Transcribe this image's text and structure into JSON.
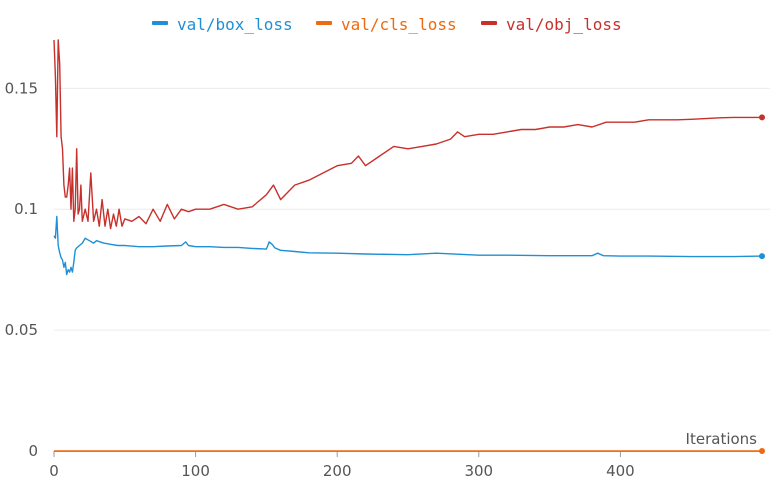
{
  "chart_data": {
    "type": "line",
    "xlabel": "Iterations",
    "xlim": [
      0,
      500
    ],
    "ylim": [
      0,
      0.17
    ],
    "x_ticks": [
      0,
      100,
      200,
      300,
      400
    ],
    "y_ticks": [
      {
        "value": 0,
        "label": "0"
      },
      {
        "value": 0.05,
        "label": "0.05"
      },
      {
        "value": 0.1,
        "label": "0.1"
      },
      {
        "value": 0.15,
        "label": "0.15"
      }
    ],
    "grid": "horizontal",
    "legend_position": "top",
    "series": [
      {
        "name": "val/box_loss",
        "color": "#1f8fd6",
        "x": [
          0,
          1,
          2,
          3,
          4,
          5,
          6,
          7,
          8,
          9,
          10,
          11,
          12,
          13,
          14,
          15,
          16,
          18,
          20,
          22,
          25,
          28,
          30,
          35,
          40,
          45,
          50,
          60,
          70,
          80,
          90,
          93,
          95,
          100,
          110,
          120,
          130,
          140,
          150,
          152,
          154,
          156,
          160,
          170,
          180,
          200,
          220,
          250,
          270,
          300,
          320,
          350,
          380,
          384,
          388,
          400,
          420,
          450,
          480,
          500
        ],
        "y": [
          0.089,
          0.088,
          0.097,
          0.085,
          0.082,
          0.08,
          0.079,
          0.076,
          0.078,
          0.073,
          0.075,
          0.074,
          0.076,
          0.074,
          0.078,
          0.083,
          0.084,
          0.085,
          0.086,
          0.088,
          0.087,
          0.086,
          0.087,
          0.086,
          0.0855,
          0.085,
          0.085,
          0.0845,
          0.0845,
          0.0848,
          0.085,
          0.0865,
          0.085,
          0.0845,
          0.0845,
          0.0842,
          0.0842,
          0.0838,
          0.0835,
          0.0865,
          0.0855,
          0.084,
          0.083,
          0.0825,
          0.082,
          0.0818,
          0.0815,
          0.0812,
          0.0818,
          0.081,
          0.081,
          0.0808,
          0.0808,
          0.0818,
          0.0808,
          0.0806,
          0.0806,
          0.0804,
          0.0804,
          0.0806
        ]
      },
      {
        "name": "val/cls_loss",
        "color": "#ee6a10",
        "x": [
          0,
          100,
          200,
          300,
          400,
          500
        ],
        "y": [
          0,
          0,
          0,
          0,
          0,
          0
        ]
      },
      {
        "name": "val/obj_loss",
        "color": "#c8302c",
        "x": [
          0,
          1,
          2,
          3,
          4,
          5,
          6,
          7,
          8,
          9,
          10,
          11,
          12,
          13,
          14,
          15,
          16,
          17,
          18,
          19,
          20,
          22,
          24,
          26,
          28,
          30,
          32,
          34,
          36,
          38,
          40,
          42,
          44,
          46,
          48,
          50,
          55,
          60,
          65,
          70,
          75,
          80,
          85,
          90,
          95,
          100,
          110,
          120,
          125,
          130,
          140,
          150,
          155,
          160,
          170,
          180,
          190,
          200,
          210,
          215,
          220,
          230,
          240,
          250,
          260,
          270,
          280,
          285,
          290,
          300,
          310,
          320,
          330,
          340,
          350,
          360,
          370,
          380,
          390,
          400,
          410,
          420,
          430,
          440,
          450,
          460,
          470,
          480,
          490,
          500
        ],
        "y": [
          0.17,
          0.155,
          0.13,
          0.17,
          0.16,
          0.13,
          0.125,
          0.11,
          0.105,
          0.105,
          0.11,
          0.117,
          0.1,
          0.117,
          0.095,
          0.1,
          0.125,
          0.098,
          0.1,
          0.11,
          0.095,
          0.1,
          0.095,
          0.115,
          0.095,
          0.1,
          0.093,
          0.104,
          0.093,
          0.1,
          0.092,
          0.098,
          0.093,
          0.1,
          0.093,
          0.096,
          0.095,
          0.097,
          0.094,
          0.1,
          0.095,
          0.102,
          0.096,
          0.1,
          0.099,
          0.1,
          0.1,
          0.102,
          0.101,
          0.1,
          0.101,
          0.106,
          0.11,
          0.104,
          0.11,
          0.112,
          0.115,
          0.118,
          0.119,
          0.122,
          0.118,
          0.122,
          0.126,
          0.125,
          0.126,
          0.127,
          0.129,
          0.132,
          0.13,
          0.131,
          0.131,
          0.132,
          0.133,
          0.133,
          0.134,
          0.134,
          0.135,
          0.134,
          0.136,
          0.136,
          0.136,
          0.137,
          0.137,
          0.137,
          0.1372,
          0.1375,
          0.1378,
          0.138,
          0.138,
          0.138
        ]
      }
    ]
  }
}
